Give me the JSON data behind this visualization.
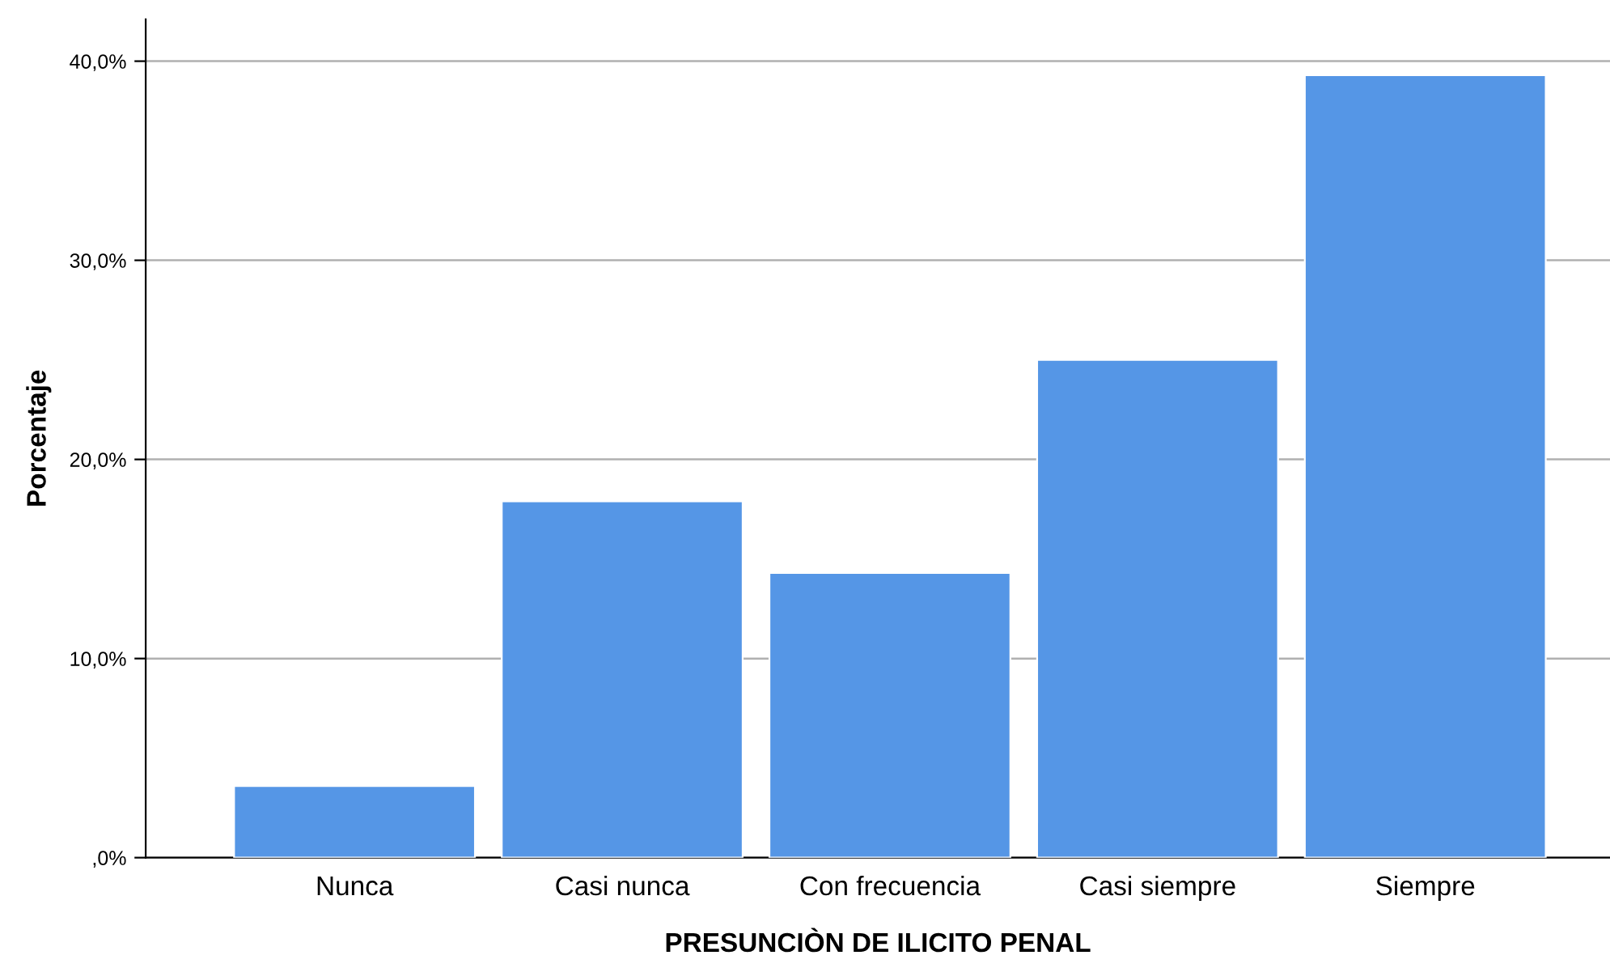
{
  "chart_data": {
    "type": "bar",
    "xlabel": "PRESUNCIÒN DE ILICITO PENAL",
    "ylabel": "Porcentaje",
    "categories": [
      "Nunca",
      "Casi nunca",
      "Con frecuencia",
      "Casi siempre",
      "Siempre"
    ],
    "values": [
      3.6,
      17.9,
      14.3,
      25.0,
      39.3
    ],
    "color": "#5596e6",
    "ylim": [
      0,
      42.1
    ],
    "yticks": [
      {
        "value": 0,
        "label": ",0%"
      },
      {
        "value": 10,
        "label": "10,0%"
      },
      {
        "value": 20,
        "label": "20,0%"
      },
      {
        "value": 30,
        "label": "30,0%"
      },
      {
        "value": 40,
        "label": "40,0%"
      }
    ],
    "grid": "y",
    "legend": false
  }
}
